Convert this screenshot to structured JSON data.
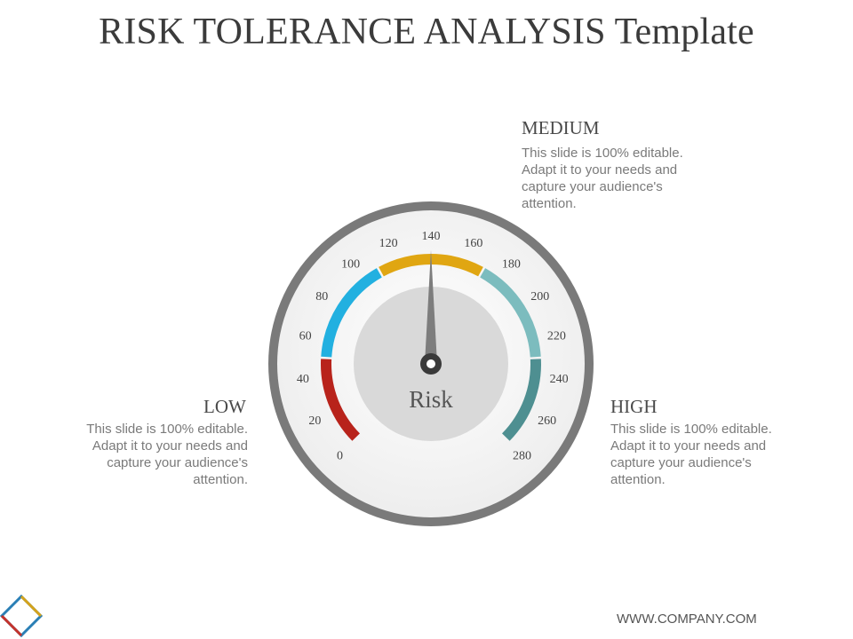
{
  "slide": {
    "title": "RISK TOLERANCE ANALYSIS Template",
    "footer": "WWW.COMPANY.COM"
  },
  "gauge": {
    "center_label": "Risk",
    "needle_value": 140,
    "scale_min": 0,
    "scale_max": 280,
    "ticks": [
      "0",
      "20",
      "40",
      "60",
      "80",
      "100",
      "120",
      "140",
      "160",
      "180",
      "200",
      "220",
      "240",
      "260",
      "280"
    ],
    "segments": [
      {
        "name": "low-red",
        "from": 0,
        "to": 50,
        "color": "#b8231b"
      },
      {
        "name": "blue",
        "from": 50,
        "to": 110,
        "color": "#22b0e0"
      },
      {
        "name": "gold",
        "from": 110,
        "to": 170,
        "color": "#e0a612"
      },
      {
        "name": "light-teal",
        "from": 170,
        "to": 230,
        "color": "#7cbcbe"
      },
      {
        "name": "dark-teal",
        "from": 230,
        "to": 280,
        "color": "#4e8f91"
      }
    ]
  },
  "labels": {
    "low": {
      "heading": "LOW",
      "body": "This slide is 100% editable. Adapt it to your needs and capture your audience's attention."
    },
    "medium": {
      "heading": "MEDIUM",
      "body": "This slide is 100% editable. Adapt it to your needs and capture your audience's attention."
    },
    "high": {
      "heading": "HIGH",
      "body": "This slide is 100% editable. Adapt it to your needs and capture your audience's attention."
    }
  },
  "colors": {
    "outer_ring": "#7a7a7a",
    "dial_face": "#f4f4f4",
    "inner_circle": "#d9d9d9",
    "needle": "#7d7d7d"
  },
  "icons": {
    "logo": "diamond-logo-icon"
  }
}
